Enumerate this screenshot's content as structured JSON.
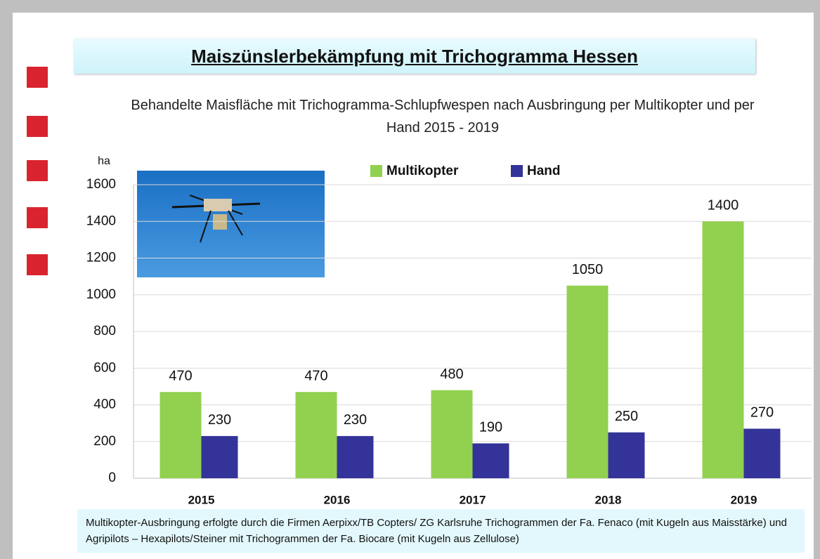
{
  "chart_data": {
    "type": "bar",
    "title": "Maiszünslerbekämpfung mit Trichogramma Hessen",
    "subtitle": "Behandelte Maisfläche mit Trichogramma-Schlupfwespen nach Ausbringung per Multikopter und per Hand 2015 - 2019",
    "ylabel": "ha",
    "categories": [
      "2015",
      "2016",
      "2017",
      "2018",
      "2019"
    ],
    "series": [
      {
        "name": "Multikopter",
        "color": "#92d050",
        "values": [
          470,
          470,
          480,
          1050,
          1400
        ]
      },
      {
        "name": "Hand",
        "color": "#333399",
        "values": [
          230,
          230,
          190,
          250,
          270
        ]
      }
    ],
    "ylim": [
      0,
      1600
    ],
    "yticks": [
      0,
      200,
      400,
      600,
      800,
      1000,
      1200,
      1400,
      1600
    ],
    "grid": true,
    "legend": "top",
    "footnote": "Multikopter-Ausbringung erfolgte durch die Firmen Aerpixx/TB Copters/  ZG Karlsruhe Trichogrammen der Fa. Fenaco (mit Kugeln aus Maisstärke)  und  Agripilots – Hexapilots/Steiner mit Trichogrammen der Fa. Biocare (mit Kugeln aus Zellulose)"
  }
}
